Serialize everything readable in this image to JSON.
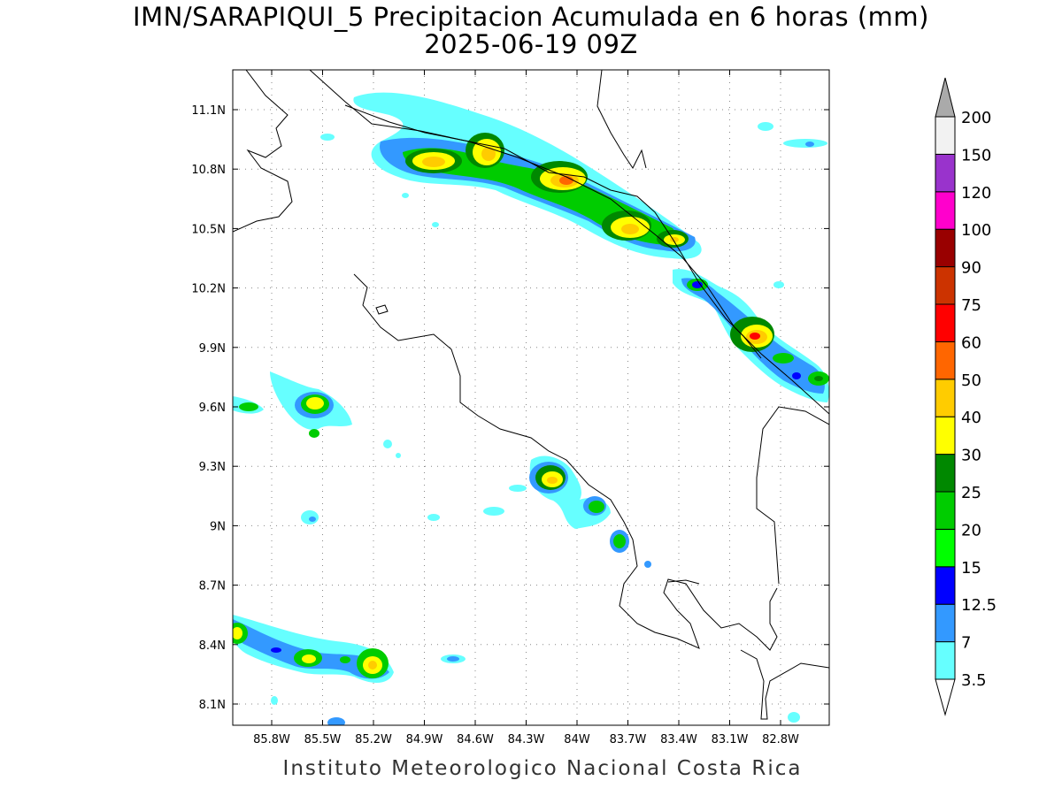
{
  "title": {
    "line1": "IMN/SARAPIQUI_5 Precipitacion Acumulada en 6 horas (mm)",
    "line2": "2025-06-19 09Z"
  },
  "footer": "Instituto Meteorologico Nacional Costa Rica",
  "map": {
    "lat_ticks": [
      "11.1N",
      "10.8N",
      "10.5N",
      "10.2N",
      "9.9N",
      "9.6N",
      "9.3N",
      "9N",
      "8.7N",
      "8.4N",
      "8.1N"
    ],
    "lon_ticks": [
      "85.8W",
      "85.5W",
      "85.2W",
      "84.9W",
      "84.6W",
      "84.3W",
      "84W",
      "83.7W",
      "83.4W",
      "83.1W",
      "82.8W"
    ],
    "grid": "dotted"
  },
  "colorbar": {
    "labels": [
      "3.5",
      "7",
      "12.5",
      "15",
      "20",
      "25",
      "30",
      "40",
      "50",
      "60",
      "75",
      "90",
      "100",
      "120",
      "150",
      "200"
    ],
    "colors": [
      "#66ffff",
      "#3399ff",
      "#0000ff",
      "#00ff00",
      "#00cc00",
      "#008800",
      "#ffff00",
      "#ffcc00",
      "#ff6600",
      "#ff0000",
      "#cc3300",
      "#990000",
      "#ff00cc",
      "#9933cc",
      "#f2f2f2",
      "#aaaaaa"
    ],
    "unit": "mm"
  }
}
